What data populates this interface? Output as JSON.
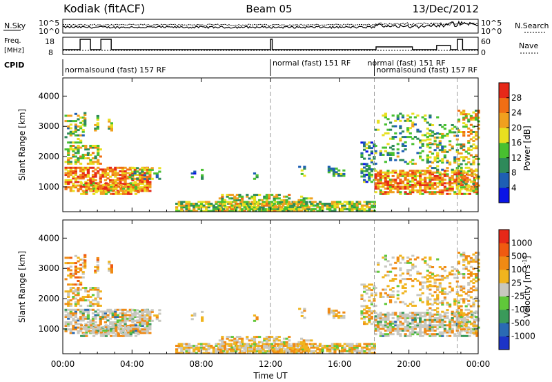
{
  "header": {
    "radar": "Kodiak (fitACF)",
    "beam": "Beam 05",
    "date": "13/Dec/2012"
  },
  "noise_panel": {
    "left_label": "N.Sky",
    "right_label": "N.Search",
    "y_top": "10^5",
    "y_bottom": "10^0",
    "right_top": "10^5",
    "right_bottom": "10^0"
  },
  "freq_panel": {
    "label_line1": "Freq.",
    "label_line2": "[MHz]",
    "y_top": "18",
    "y_bottom": "8",
    "right_label": "Nave",
    "right_top": "60",
    "right_bottom": "0"
  },
  "cpid": {
    "label": "CPID",
    "segments": [
      {
        "text": "normalsound (fast) 157 RF",
        "start": 0.0,
        "end": 12.0
      },
      {
        "text": "normal (fast) 151 RF",
        "start": 12.0,
        "end": 18.0
      },
      {
        "text": "normal (fast) 151 RF",
        "start": 18.0,
        "end": 22.8
      },
      {
        "text": "normalsound (fast) 157 RF",
        "start": 18.0,
        "end": 24.0
      }
    ]
  },
  "chart_data": [
    {
      "type": "heatmap",
      "panel": "power",
      "ylabel": "Slant Range [km]",
      "ylim": [
        180,
        4600
      ],
      "y_ticks": [
        "1000",
        "2000",
        "3000",
        "4000"
      ],
      "colorbar": {
        "title": "Power [dB]",
        "ticks": [
          "4",
          "8",
          "12",
          "16",
          "20",
          "24",
          "28"
        ],
        "colors": [
          "#0a14e6",
          "#1e5fb4",
          "#2e8a5a",
          "#48c030",
          "#e8e020",
          "#f0a01e",
          "#f06e14",
          "#e62818"
        ]
      }
    },
    {
      "type": "heatmap",
      "panel": "velocity",
      "ylabel": "Slant Range [km]",
      "ylim": [
        180,
        4600
      ],
      "y_ticks": [
        "1000",
        "2000",
        "3000",
        "4000"
      ],
      "colorbar": {
        "title": "Velocity [m s",
        "title_sup": "-1",
        "title_end": "]",
        "ticks": [
          "1000",
          "500",
          "100",
          "25",
          "-25",
          "-100",
          "-500",
          "-1000"
        ],
        "colors": [
          "#1c34c8",
          "#2a6ab4",
          "#3a9a5a",
          "#60c83a",
          "#c8c8c0",
          "#f0b41e",
          "#f08a14",
          "#f05a10",
          "#e62818"
        ]
      }
    }
  ],
  "x_axis": {
    "label": "Time UT",
    "ticks": [
      "00:00",
      "04:00",
      "08:00",
      "12:00",
      "16:00",
      "20:00",
      "00:00"
    ],
    "range_hours": [
      0,
      24
    ]
  }
}
